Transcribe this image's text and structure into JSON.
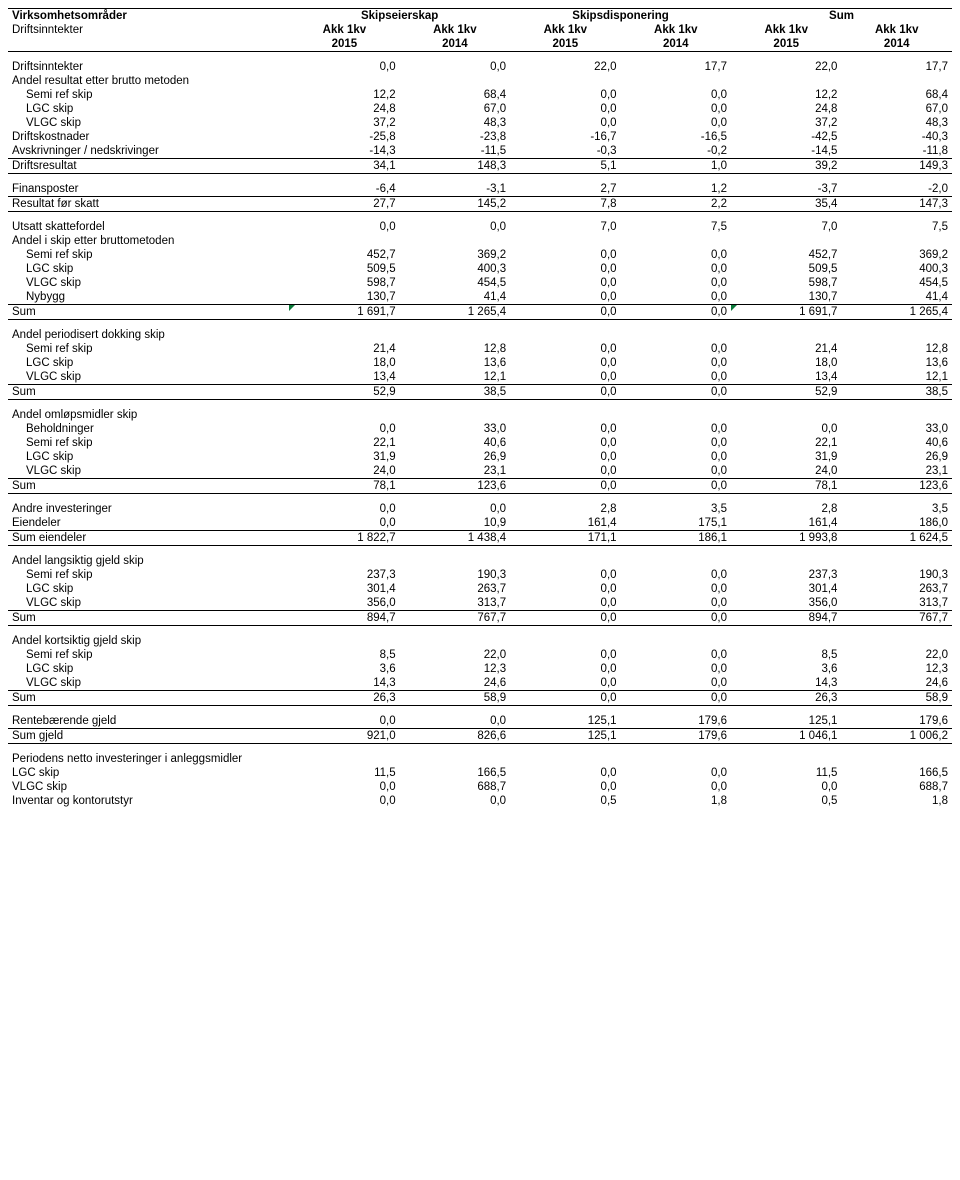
{
  "header": {
    "col1": "Virksomhetsområder",
    "groups": [
      "Skipseierskap",
      "Skipsdisponering",
      "Sum"
    ],
    "col1b": "Driftsinntekter",
    "sub": "Akk 1kv",
    "years": [
      "2015",
      "2014",
      "2015",
      "2014",
      "2015",
      "2014"
    ]
  },
  "sections": [
    {
      "rows": [
        {
          "label": "Driftsinntekter",
          "vals": [
            "0,0",
            "0,0",
            "22,0",
            "17,7",
            "22,0",
            "17,7"
          ]
        },
        {
          "label": "Andel resultat etter brutto metoden",
          "vals": [
            "",
            "",
            "",
            "",
            "",
            ""
          ]
        },
        {
          "label": "Semi ref skip",
          "indent": true,
          "vals": [
            "12,2",
            "68,4",
            "0,0",
            "0,0",
            "12,2",
            "68,4"
          ]
        },
        {
          "label": "LGC skip",
          "indent": true,
          "vals": [
            "24,8",
            "67,0",
            "0,0",
            "0,0",
            "24,8",
            "67,0"
          ]
        },
        {
          "label": "VLGC skip",
          "indent": true,
          "vals": [
            "37,2",
            "48,3",
            "0,0",
            "0,0",
            "37,2",
            "48,3"
          ]
        },
        {
          "label": "Driftskostnader",
          "vals": [
            "-25,8",
            "-23,8",
            "-16,7",
            "-16,5",
            "-42,5",
            "-40,3"
          ]
        },
        {
          "label": "Avskrivninger / nedskrivinger",
          "vals": [
            "-14,3",
            "-11,5",
            "-0,3",
            "-0,2",
            "-14,5",
            "-11,8"
          ]
        },
        {
          "label": "Driftsresultat",
          "sum": true,
          "vals": [
            "34,1",
            "148,3",
            "5,1",
            "1,0",
            "39,2",
            "149,3"
          ]
        }
      ]
    },
    {
      "rows": [
        {
          "label": "Finansposter",
          "vals": [
            "-6,4",
            "-3,1",
            "2,7",
            "1,2",
            "-3,7",
            "-2,0"
          ]
        },
        {
          "label": "Resultat før skatt",
          "sum": true,
          "vals": [
            "27,7",
            "145,2",
            "7,8",
            "2,2",
            "35,4",
            "147,3"
          ]
        }
      ]
    },
    {
      "rows": [
        {
          "label": "Utsatt skattefordel",
          "vals": [
            "0,0",
            "0,0",
            "7,0",
            "7,5",
            "7,0",
            "7,5"
          ]
        },
        {
          "label": "Andel i skip etter bruttometoden",
          "vals": [
            "",
            "",
            "",
            "",
            "",
            ""
          ]
        },
        {
          "label": "Semi ref skip",
          "indent": true,
          "vals": [
            "452,7",
            "369,2",
            "0,0",
            "0,0",
            "452,7",
            "369,2"
          ]
        },
        {
          "label": "LGC skip",
          "indent": true,
          "vals": [
            "509,5",
            "400,3",
            "0,0",
            "0,0",
            "509,5",
            "400,3"
          ]
        },
        {
          "label": "VLGC skip",
          "indent": true,
          "vals": [
            "598,7",
            "454,5",
            "0,0",
            "0,0",
            "598,7",
            "454,5"
          ]
        },
        {
          "label": "Nybygg",
          "indent": true,
          "vals": [
            "130,7",
            "41,4",
            "0,0",
            "0,0",
            "130,7",
            "41,4"
          ]
        },
        {
          "label": "Sum",
          "sum": true,
          "triangle": [
            0,
            4
          ],
          "vals": [
            "1 691,7",
            "1 265,4",
            "0,0",
            "0,0",
            "1 691,7",
            "1 265,4"
          ]
        }
      ]
    },
    {
      "rows": [
        {
          "label": "Andel periodisert dokking skip",
          "vals": [
            "",
            "",
            "",
            "",
            "",
            ""
          ]
        },
        {
          "label": "Semi ref skip",
          "indent": true,
          "vals": [
            "21,4",
            "12,8",
            "0,0",
            "0,0",
            "21,4",
            "12,8"
          ]
        },
        {
          "label": "LGC skip",
          "indent": true,
          "vals": [
            "18,0",
            "13,6",
            "0,0",
            "0,0",
            "18,0",
            "13,6"
          ]
        },
        {
          "label": "VLGC skip",
          "indent": true,
          "vals": [
            "13,4",
            "12,1",
            "0,0",
            "0,0",
            "13,4",
            "12,1"
          ]
        },
        {
          "label": "Sum",
          "sum": true,
          "vals": [
            "52,9",
            "38,5",
            "0,0",
            "0,0",
            "52,9",
            "38,5"
          ]
        }
      ]
    },
    {
      "rows": [
        {
          "label": "Andel omløpsmidler skip",
          "vals": [
            "",
            "",
            "",
            "",
            "",
            ""
          ]
        },
        {
          "label": "Beholdninger",
          "indent": true,
          "vals": [
            "0,0",
            "33,0",
            "0,0",
            "0,0",
            "0,0",
            "33,0"
          ]
        },
        {
          "label": "Semi ref skip",
          "indent": true,
          "vals": [
            "22,1",
            "40,6",
            "0,0",
            "0,0",
            "22,1",
            "40,6"
          ]
        },
        {
          "label": "LGC skip",
          "indent": true,
          "vals": [
            "31,9",
            "26,9",
            "0,0",
            "0,0",
            "31,9",
            "26,9"
          ]
        },
        {
          "label": "VLGC skip",
          "indent": true,
          "vals": [
            "24,0",
            "23,1",
            "0,0",
            "0,0",
            "24,0",
            "23,1"
          ]
        },
        {
          "label": "Sum",
          "sum": true,
          "vals": [
            "78,1",
            "123,6",
            "0,0",
            "0,0",
            "78,1",
            "123,6"
          ]
        }
      ]
    },
    {
      "rows": [
        {
          "label": "Andre investeringer",
          "vals": [
            "0,0",
            "0,0",
            "2,8",
            "3,5",
            "2,8",
            "3,5"
          ]
        },
        {
          "label": "Eiendeler",
          "vals": [
            "0,0",
            "10,9",
            "161,4",
            "175,1",
            "161,4",
            "186,0"
          ]
        },
        {
          "label": "Sum eiendeler",
          "sum": true,
          "vals": [
            "1 822,7",
            "1 438,4",
            "171,1",
            "186,1",
            "1 993,8",
            "1 624,5"
          ]
        }
      ]
    },
    {
      "rows": [
        {
          "label": "Andel langsiktig gjeld skip",
          "vals": [
            "",
            "",
            "",
            "",
            "",
            ""
          ]
        },
        {
          "label": "Semi ref skip",
          "indent": true,
          "vals": [
            "237,3",
            "190,3",
            "0,0",
            "0,0",
            "237,3",
            "190,3"
          ]
        },
        {
          "label": "LGC skip",
          "indent": true,
          "vals": [
            "301,4",
            "263,7",
            "0,0",
            "0,0",
            "301,4",
            "263,7"
          ]
        },
        {
          "label": "VLGC skip",
          "indent": true,
          "vals": [
            "356,0",
            "313,7",
            "0,0",
            "0,0",
            "356,0",
            "313,7"
          ]
        },
        {
          "label": "Sum",
          "sum": true,
          "vals": [
            "894,7",
            "767,7",
            "0,0",
            "0,0",
            "894,7",
            "767,7"
          ]
        }
      ]
    },
    {
      "rows": [
        {
          "label": "Andel kortsiktig gjeld skip",
          "vals": [
            "",
            "",
            "",
            "",
            "",
            ""
          ]
        },
        {
          "label": "Semi ref skip",
          "indent": true,
          "vals": [
            "8,5",
            "22,0",
            "0,0",
            "0,0",
            "8,5",
            "22,0"
          ]
        },
        {
          "label": "LGC skip",
          "indent": true,
          "vals": [
            "3,6",
            "12,3",
            "0,0",
            "0,0",
            "3,6",
            "12,3"
          ]
        },
        {
          "label": "VLGC skip",
          "indent": true,
          "vals": [
            "14,3",
            "24,6",
            "0,0",
            "0,0",
            "14,3",
            "24,6"
          ]
        },
        {
          "label": "Sum",
          "sum": true,
          "vals": [
            "26,3",
            "58,9",
            "0,0",
            "0,0",
            "26,3",
            "58,9"
          ]
        }
      ]
    },
    {
      "rows": [
        {
          "label": "Rentebærende gjeld",
          "vals": [
            "0,0",
            "0,0",
            "125,1",
            "179,6",
            "125,1",
            "179,6"
          ]
        },
        {
          "label": "Sum gjeld",
          "sum": true,
          "vals": [
            "921,0",
            "826,6",
            "125,1",
            "179,6",
            "1 046,1",
            "1 006,2"
          ]
        }
      ]
    },
    {
      "rows": [
        {
          "label": "Periodens netto investeringer i anleggsmidler",
          "vals": [
            "",
            "",
            "",
            "",
            "",
            ""
          ]
        },
        {
          "label": "LGC skip",
          "vals": [
            "11,5",
            "166,5",
            "0,0",
            "0,0",
            "11,5",
            "166,5"
          ]
        },
        {
          "label": "VLGC skip",
          "vals": [
            "0,0",
            "688,7",
            "0,0",
            "0,0",
            "0,0",
            "688,7"
          ]
        },
        {
          "label": "Inventar og kontorutstyr",
          "vals": [
            "0,0",
            "0,0",
            "0,5",
            "1,8",
            "0,5",
            "1,8"
          ]
        }
      ]
    }
  ]
}
